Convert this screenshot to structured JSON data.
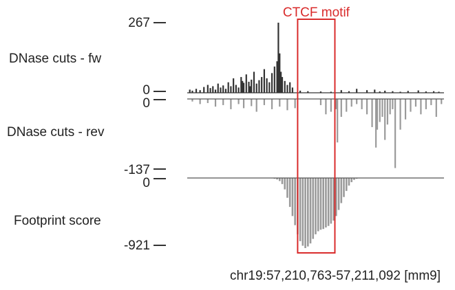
{
  "chart_data": {
    "type": "bar",
    "annotation": {
      "label": "CTCF motif",
      "color": "#d92b2b",
      "x_range": [
        0.43,
        0.575
      ]
    },
    "x_axis": {
      "label": "chr19:57,210,763-57,211,092 [mm9]",
      "range": [
        0,
        1
      ]
    },
    "colors": {
      "fw": "#333333",
      "rev": "#9a9a9a",
      "score": "#9a9a9a",
      "axis": "#333333"
    },
    "tracks": [
      {
        "id": "fw",
        "label": "DNase cuts - fw",
        "ylim": [
          0,
          267
        ],
        "tick_labels": [
          "267",
          "0"
        ],
        "tick_values": [
          267,
          0
        ],
        "x": [
          0.01,
          0.02,
          0.035,
          0.05,
          0.065,
          0.08,
          0.09,
          0.1,
          0.11,
          0.12,
          0.13,
          0.14,
          0.15,
          0.16,
          0.17,
          0.18,
          0.19,
          0.2,
          0.21,
          0.215,
          0.22,
          0.23,
          0.24,
          0.245,
          0.25,
          0.26,
          0.27,
          0.28,
          0.29,
          0.3,
          0.31,
          0.32,
          0.33,
          0.34,
          0.35,
          0.355,
          0.36,
          0.365,
          0.37,
          0.38,
          0.39,
          0.4,
          0.41,
          0.44,
          0.47,
          0.52,
          0.56,
          0.6,
          0.63,
          0.66,
          0.7,
          0.73,
          0.75,
          0.77,
          0.8,
          0.83,
          0.86,
          0.9,
          0.93,
          0.96,
          0.98
        ],
        "values": [
          12,
          8,
          15,
          10,
          22,
          30,
          18,
          25,
          12,
          35,
          20,
          28,
          15,
          40,
          25,
          55,
          30,
          20,
          60,
          45,
          38,
          70,
          42,
          25,
          50,
          80,
          35,
          48,
          60,
          90,
          55,
          40,
          75,
          100,
          120,
          267,
          150,
          80,
          60,
          45,
          30,
          40,
          20,
          8,
          6,
          5,
          4,
          10,
          6,
          15,
          10,
          12,
          5,
          8,
          6,
          4,
          7,
          9,
          5,
          6,
          4
        ]
      },
      {
        "id": "rev",
        "label": "DNase cuts - rev",
        "ylim": [
          -137,
          0
        ],
        "tick_labels": [
          "0",
          "-137"
        ],
        "tick_values": [
          0,
          -137
        ],
        "x": [
          0.02,
          0.05,
          0.08,
          0.11,
          0.14,
          0.17,
          0.2,
          0.22,
          0.25,
          0.27,
          0.3,
          0.33,
          0.36,
          0.39,
          0.42,
          0.52,
          0.54,
          0.56,
          0.58,
          0.585,
          0.6,
          0.62,
          0.64,
          0.66,
          0.68,
          0.7,
          0.72,
          0.735,
          0.74,
          0.75,
          0.76,
          0.77,
          0.78,
          0.79,
          0.8,
          0.81,
          0.83,
          0.85,
          0.87,
          0.89,
          0.91,
          0.93,
          0.95,
          0.97,
          0.99
        ],
        "values": [
          -5,
          -10,
          -8,
          -15,
          -12,
          -20,
          -10,
          -18,
          -14,
          -25,
          -12,
          -20,
          -15,
          -22,
          -18,
          -12,
          -30,
          -25,
          -20,
          -85,
          -35,
          -25,
          -15,
          -10,
          -20,
          -30,
          -55,
          -95,
          -60,
          -45,
          -35,
          -80,
          -50,
          -30,
          -20,
          -135,
          -60,
          -40,
          -25,
          -15,
          -30,
          -20,
          -12,
          -35,
          -10
        ]
      },
      {
        "id": "score",
        "label": "Footprint score",
        "ylim": [
          -921,
          0
        ],
        "tick_labels": [
          "0",
          "-921"
        ],
        "tick_values": [
          0,
          -921
        ],
        "x": [
          0.33,
          0.34,
          0.35,
          0.36,
          0.37,
          0.38,
          0.39,
          0.4,
          0.41,
          0.42,
          0.43,
          0.44,
          0.45,
          0.46,
          0.47,
          0.48,
          0.49,
          0.5,
          0.51,
          0.52,
          0.53,
          0.54,
          0.55,
          0.56,
          0.57,
          0.58,
          0.59,
          0.6,
          0.61,
          0.62,
          0.63,
          0.64,
          0.65,
          0.66,
          0.67
        ],
        "values": [
          -5,
          -10,
          -20,
          -40,
          -80,
          -150,
          -260,
          -380,
          -500,
          -620,
          -740,
          -830,
          -890,
          -921,
          -900,
          -860,
          -800,
          -740,
          -700,
          -680,
          -670,
          -650,
          -630,
          -600,
          -560,
          -500,
          -420,
          -330,
          -250,
          -170,
          -100,
          -55,
          -25,
          -10,
          -5
        ]
      }
    ]
  }
}
